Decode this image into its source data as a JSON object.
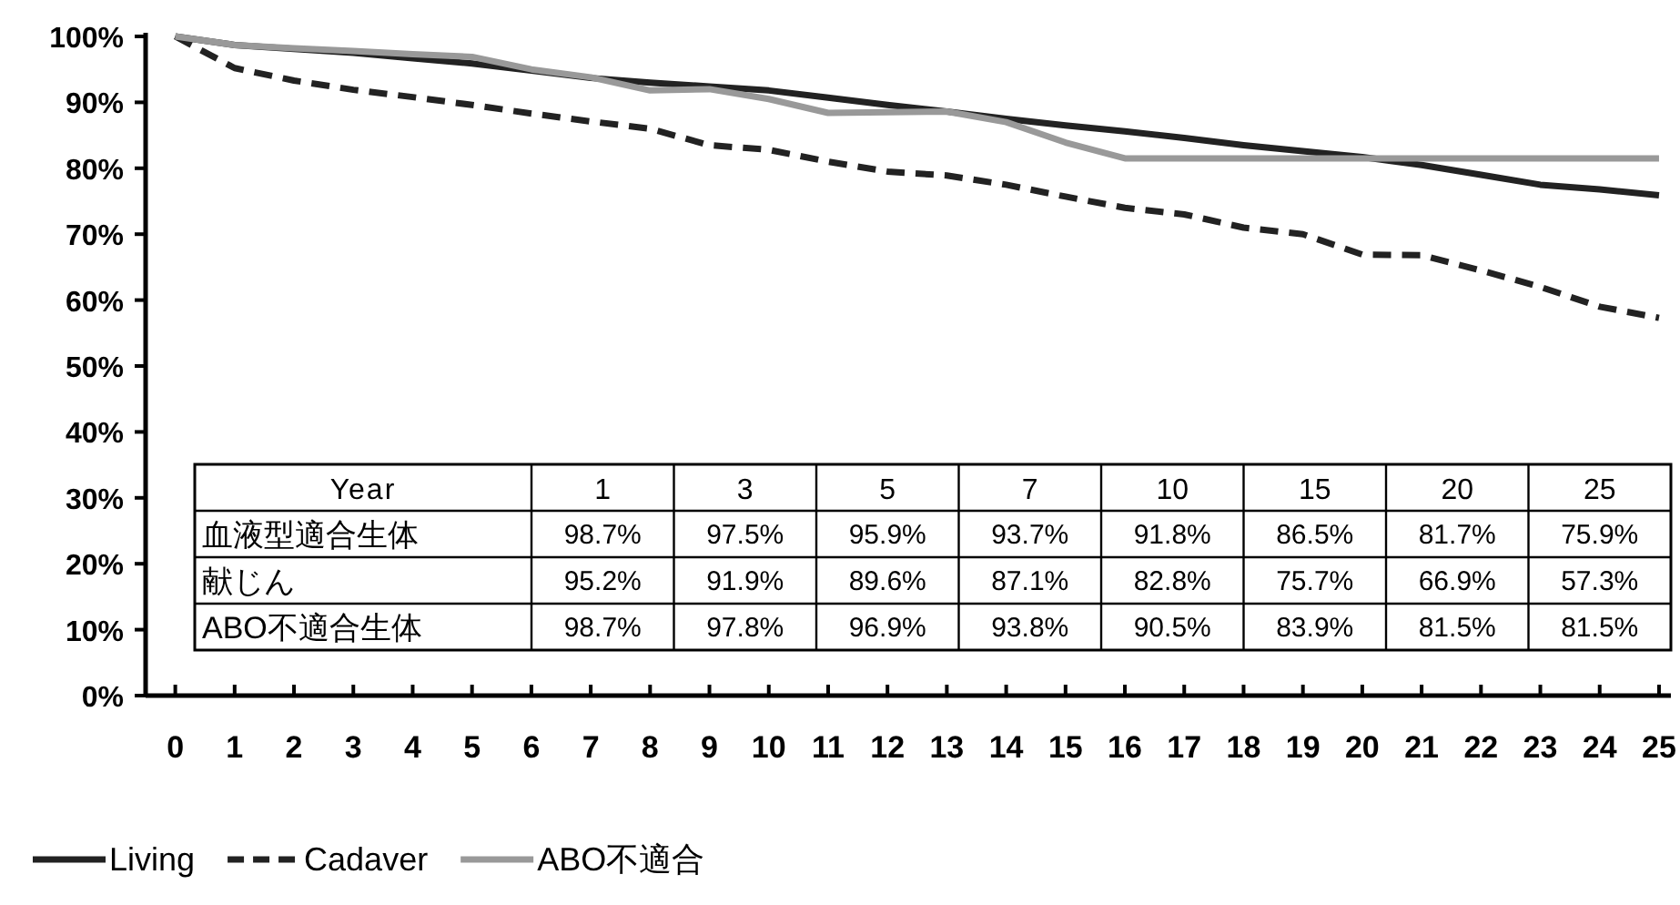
{
  "chart_data": {
    "type": "line",
    "xlim": [
      -0.5,
      25.2
    ],
    "xticks": [
      0,
      1,
      2,
      3,
      4,
      5,
      6,
      7,
      8,
      9,
      10,
      11,
      12,
      13,
      14,
      15,
      16,
      17,
      18,
      19,
      20,
      21,
      22,
      23,
      24,
      25
    ],
    "ylim": [
      0,
      100
    ],
    "yticks": [
      {
        "value": 0,
        "label": "0%"
      },
      {
        "value": 10,
        "label": "10%"
      },
      {
        "value": 20,
        "label": "20%"
      },
      {
        "value": 30,
        "label": "30%"
      },
      {
        "value": 40,
        "label": "40%"
      },
      {
        "value": 50,
        "label": "50%"
      },
      {
        "value": 60,
        "label": "60%"
      },
      {
        "value": 70,
        "label": "70%"
      },
      {
        "value": 80,
        "label": "80%"
      },
      {
        "value": 90,
        "label": "90%"
      },
      {
        "value": 100,
        "label": "100%"
      }
    ],
    "legend": "bottom left",
    "annotations": [
      "Year",
      "1",
      "3",
      "5",
      "7",
      "10",
      "15",
      "20",
      "25",
      "血液型適合生体",
      "98.7%",
      "97.5%",
      "95.9%",
      "93.7%",
      "91.8%",
      "86.5%",
      "81.7%",
      "75.9%",
      "献じん",
      "95.2%",
      "91.9%",
      "89.6%",
      "87.1%",
      "82.8%",
      "75.7%",
      "66.9%",
      "57.3%",
      "ABO不適合生体",
      "98.7%",
      "97.8%",
      "96.9%",
      "93.8%",
      "90.5%",
      "83.9%",
      "81.5%",
      "81.5%"
    ],
    "x": [
      0,
      1,
      2,
      3,
      4,
      5,
      6,
      7,
      8,
      9,
      10,
      11,
      12,
      13,
      14,
      15,
      16,
      17,
      18,
      19,
      20,
      21,
      22,
      23,
      24,
      25
    ],
    "series": [
      {
        "name": "Living",
        "color": "#222222",
        "line_style": "solid",
        "values": [
          100,
          98.7,
          98.1,
          97.5,
          96.7,
          95.9,
          94.8,
          93.7,
          93.0,
          92.4,
          91.8,
          90.7,
          89.6,
          88.6,
          87.5,
          86.5,
          85.6,
          84.6,
          83.5,
          82.6,
          81.7,
          80.5,
          79.0,
          77.5,
          76.8,
          75.9
        ]
      },
      {
        "name": "Cadaver",
        "color": "#222222",
        "line_style": "dashed",
        "values": [
          100,
          95.2,
          93.3,
          91.9,
          90.8,
          89.6,
          88.3,
          87.1,
          86.0,
          83.5,
          82.8,
          81.0,
          79.5,
          78.9,
          77.5,
          75.7,
          74.0,
          73.0,
          71.0,
          70.0,
          66.9,
          66.8,
          64.5,
          62.0,
          59.0,
          57.3
        ]
      },
      {
        "name": "ABO不適合",
        "color": "#999999",
        "line_style": "solid",
        "values": [
          100,
          98.7,
          98.2,
          97.8,
          97.3,
          96.9,
          95.0,
          93.8,
          91.8,
          92.0,
          90.5,
          88.4,
          88.5,
          88.6,
          87.0,
          83.9,
          81.5,
          81.5,
          81.5,
          81.5,
          81.5,
          81.5,
          81.5,
          81.5,
          81.5,
          81.5
        ]
      }
    ]
  }
}
